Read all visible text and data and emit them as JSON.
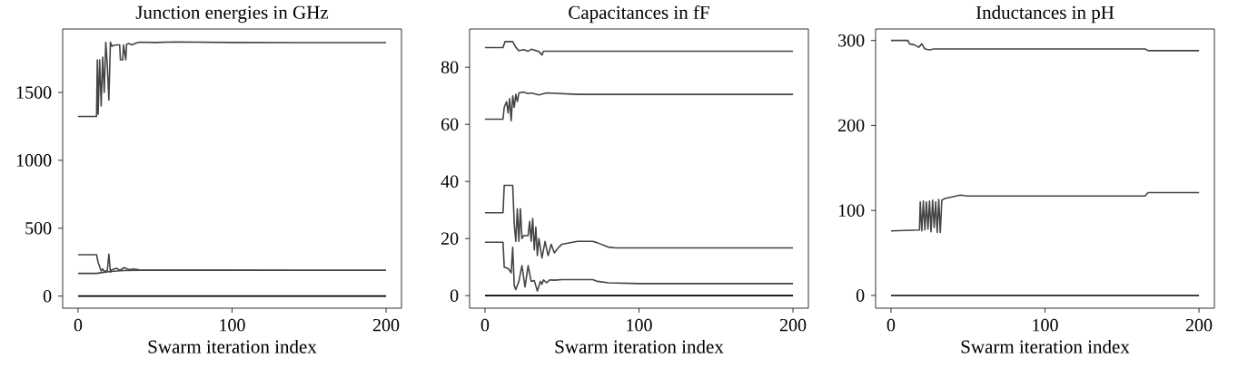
{
  "chart_data": [
    {
      "type": "line",
      "title": "Junction energies in GHz",
      "xlabel": "Swarm iteration index",
      "xlim": [
        -10,
        210
      ],
      "ylim": [
        -89,
        1967
      ],
      "xticks": [
        0,
        100,
        200
      ],
      "yticks": [
        0,
        500,
        1000,
        1500
      ],
      "series": [
        {
          "color": "#444444",
          "x": [
            0,
            12,
            12.5,
            13,
            14,
            15,
            16,
            17,
            18,
            19,
            20,
            21,
            22,
            23,
            25,
            27,
            27.5,
            29,
            29.5,
            31,
            31.5,
            33,
            35,
            38,
            40,
            50,
            63,
            100,
            145,
            200
          ],
          "values": [
            1323,
            1323,
            1740,
            1340,
            1740,
            1400,
            1760,
            1500,
            1870,
            1700,
            1444,
            1870,
            1840,
            1845,
            1850,
            1850,
            1740,
            1740,
            1850,
            1740,
            1855,
            1860,
            1850,
            1865,
            1870,
            1868,
            1872,
            1868,
            1867,
            1867
          ]
        },
        {
          "color": "#444444",
          "x": [
            0,
            12,
            13,
            15,
            16,
            17,
            19,
            20,
            21,
            22,
            25,
            27,
            30,
            33,
            36,
            40,
            60,
            145,
            200
          ],
          "values": [
            305,
            305,
            250,
            185,
            200,
            180,
            190,
            310,
            175,
            195,
            205,
            190,
            210,
            195,
            200,
            192,
            191,
            190,
            190
          ]
        },
        {
          "color": "#444444",
          "x": [
            0,
            12,
            15,
            20,
            25,
            30,
            40,
            200
          ],
          "values": [
            167,
            167,
            172,
            180,
            185,
            188,
            190,
            190
          ]
        },
        {
          "color": "#000000",
          "x": [
            0,
            200
          ],
          "values": [
            0,
            0
          ]
        }
      ]
    },
    {
      "type": "line",
      "title": "Capacitances in fF",
      "xlabel": "Swarm iteration index",
      "xlim": [
        -10,
        210
      ],
      "ylim": [
        -4.4,
        93.4
      ],
      "xticks": [
        0,
        100,
        200
      ],
      "yticks": [
        0,
        20,
        40,
        60,
        80
      ],
      "series": [
        {
          "color": "#444444",
          "x": [
            0,
            11.7,
            13,
            18,
            20,
            22,
            25,
            28,
            30,
            35,
            37,
            38,
            45,
            100,
            200
          ],
          "values": [
            86.9,
            86.9,
            89,
            89,
            87,
            85.8,
            86.2,
            85.6,
            86.3,
            85.5,
            84.3,
            85.6,
            85.6,
            85.6,
            85.6
          ]
        },
        {
          "color": "#444444",
          "x": [
            0,
            11.7,
            12.5,
            14,
            15,
            16,
            17,
            18,
            19,
            20,
            21,
            22,
            25,
            28,
            30,
            35,
            40,
            60,
            100,
            200
          ],
          "values": [
            61.8,
            61.8,
            66,
            68,
            64,
            69,
            61.3,
            70,
            66,
            70.5,
            68,
            71,
            71.3,
            70.8,
            71,
            70.3,
            71,
            70.5,
            70.5,
            70.5
          ]
        },
        {
          "color": "#444444",
          "x": [
            0,
            11.7,
            12.5,
            18,
            19,
            20,
            21,
            22,
            23,
            24,
            25,
            28,
            29,
            30,
            31,
            32,
            33,
            34,
            35,
            37,
            39,
            41,
            43,
            45,
            48,
            50,
            60,
            70,
            73,
            80,
            85,
            100,
            200
          ],
          "values": [
            29,
            29,
            38.6,
            38.6,
            25,
            19,
            30.4,
            19,
            30.4,
            20,
            21,
            21,
            26,
            19,
            27,
            16,
            24,
            14,
            20,
            13.2,
            19,
            14,
            18,
            15,
            17,
            18,
            19,
            19,
            18.5,
            17,
            16.7,
            16.7,
            16.7
          ]
        },
        {
          "color": "#444444",
          "x": [
            0,
            11.7,
            12.5,
            15,
            17,
            18,
            19,
            20,
            22,
            24,
            26,
            28,
            30,
            32,
            34,
            36,
            37,
            38,
            40,
            42,
            45,
            50,
            70,
            73,
            80,
            100,
            200
          ],
          "values": [
            18.7,
            18.7,
            10,
            9.5,
            8,
            16.9,
            3.5,
            2.1,
            5,
            10.5,
            3,
            10.5,
            5,
            5.3,
            1.6,
            5,
            4,
            5.5,
            4.5,
            5.5,
            5.4,
            5.6,
            5.6,
            5,
            4.5,
            4.2,
            4.2
          ]
        },
        {
          "color": "#000000",
          "x": [
            0,
            200
          ],
          "values": [
            0,
            0
          ]
        }
      ]
    },
    {
      "type": "line",
      "title": "Inductances in pH",
      "xlabel": "Swarm iteration index",
      "xlim": [
        -10,
        210
      ],
      "ylim": [
        -15,
        313.5
      ],
      "xticks": [
        0,
        100,
        200
      ],
      "yticks": [
        0,
        100,
        200,
        300
      ],
      "series": [
        {
          "color": "#444444",
          "x": [
            0,
            11,
            12,
            15,
            18,
            20,
            22,
            25,
            28,
            30,
            50,
            165,
            167,
            200
          ],
          "values": [
            300,
            300,
            296,
            295,
            292,
            296,
            290,
            289,
            290,
            290,
            290,
            290,
            288,
            288
          ]
        },
        {
          "color": "#444444",
          "x": [
            0,
            18.5,
            19,
            20,
            21,
            22,
            23,
            24,
            25,
            26,
            27,
            28,
            29,
            30,
            31,
            32,
            33,
            35,
            40,
            45,
            50,
            60,
            100,
            165,
            167,
            200
          ],
          "values": [
            76,
            77,
            110,
            76,
            111,
            77,
            110,
            78,
            111,
            75,
            112,
            80,
            110,
            74,
            113,
            74,
            112,
            114,
            116,
            118,
            117,
            117,
            117,
            117,
            121,
            121
          ]
        },
        {
          "color": "#000000",
          "x": [
            0,
            200
          ],
          "values": [
            0,
            0
          ]
        }
      ]
    }
  ]
}
